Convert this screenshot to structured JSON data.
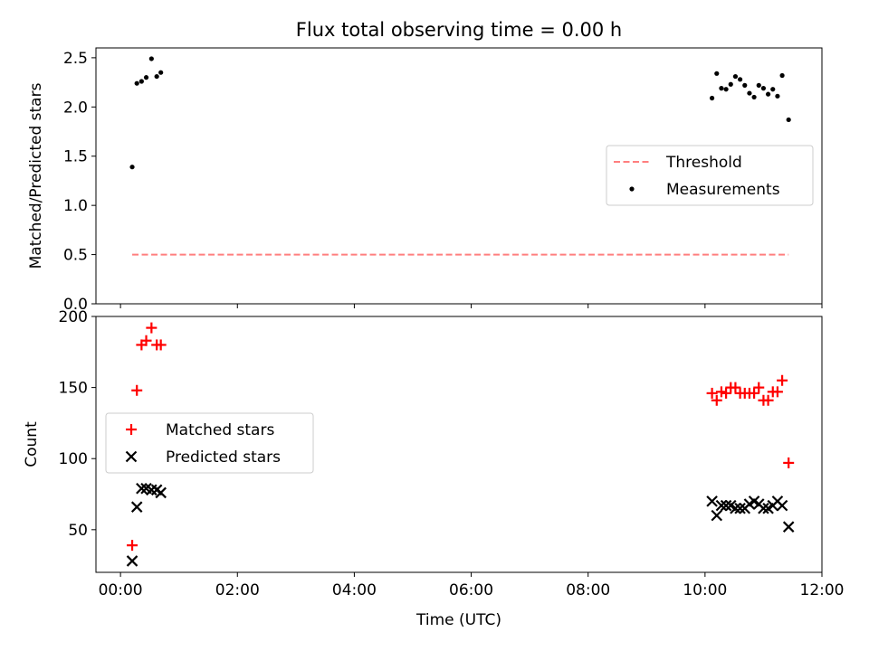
{
  "title": "Flux total observing time = 0.00 h",
  "chart_data": [
    {
      "type": "scatter",
      "panel": "top",
      "xlabel": "",
      "ylabel": "Matched/Predicted stars",
      "x_unit": "hours (UTC)",
      "xlim": [
        -0.42,
        12.0
      ],
      "ylim": [
        0,
        2.6
      ],
      "y_ticks": [
        0.0,
        0.5,
        1.0,
        1.5,
        2.0,
        2.5
      ],
      "y_tick_labels": [
        "0.0",
        "0.5",
        "1.0",
        "1.5",
        "2.0",
        "2.5"
      ],
      "legend": {
        "placement": "center-right",
        "entries": [
          "Threshold",
          "Measurements"
        ]
      },
      "series": [
        {
          "name": "Threshold",
          "style": "dashed-line",
          "color": "#ff7f7f",
          "x": [
            0.2,
            11.43
          ],
          "y": [
            0.5,
            0.5
          ]
        },
        {
          "name": "Measurements",
          "style": "dot",
          "color": "#000000",
          "x": [
            0.2,
            0.28,
            0.36,
            0.44,
            0.53,
            0.62,
            0.69,
            10.12,
            10.2,
            10.28,
            10.36,
            10.44,
            10.52,
            10.6,
            10.68,
            10.76,
            10.84,
            10.92,
            11.0,
            11.08,
            11.16,
            11.24,
            11.32,
            11.43
          ],
          "y": [
            1.39,
            2.24,
            2.26,
            2.3,
            2.49,
            2.31,
            2.35,
            2.09,
            2.34,
            2.19,
            2.18,
            2.23,
            2.31,
            2.28,
            2.22,
            2.14,
            2.1,
            2.22,
            2.19,
            2.13,
            2.18,
            2.11,
            2.32,
            1.87
          ]
        }
      ]
    },
    {
      "type": "scatter",
      "panel": "bottom",
      "xlabel": "Time (UTC)",
      "ylabel": "Count",
      "x_unit": "hours (UTC)",
      "xlim": [
        -0.42,
        12.0
      ],
      "ylim": [
        20,
        200
      ],
      "y_ticks": [
        50,
        100,
        150,
        200
      ],
      "y_tick_labels": [
        "50",
        "100",
        "150",
        "200"
      ],
      "x_ticks": [
        0,
        2,
        4,
        6,
        8,
        10,
        12
      ],
      "x_tick_labels": [
        "00:00",
        "02:00",
        "04:00",
        "06:00",
        "08:00",
        "10:00",
        "12:00"
      ],
      "legend": {
        "placement": "center-left",
        "entries": [
          "Matched stars",
          "Predicted stars"
        ]
      },
      "series": [
        {
          "name": "Matched stars",
          "marker": "plus",
          "color": "#ff0000",
          "x": [
            0.2,
            0.28,
            0.36,
            0.44,
            0.53,
            0.62,
            0.69,
            10.12,
            10.2,
            10.28,
            10.36,
            10.44,
            10.52,
            10.6,
            10.68,
            10.76,
            10.84,
            10.92,
            11.0,
            11.08,
            11.16,
            11.24,
            11.32,
            11.43
          ],
          "y": [
            39,
            148,
            180,
            183,
            192,
            180,
            180,
            146,
            141,
            147,
            146,
            150,
            150,
            146,
            146,
            146,
            146,
            150,
            141,
            141,
            147,
            147,
            155,
            97
          ]
        },
        {
          "name": "Predicted stars",
          "marker": "x",
          "color": "#000000",
          "x": [
            0.2,
            0.28,
            0.36,
            0.44,
            0.53,
            0.62,
            0.69,
            10.12,
            10.2,
            10.28,
            10.36,
            10.44,
            10.52,
            10.6,
            10.68,
            10.76,
            10.84,
            10.92,
            11.0,
            11.08,
            11.16,
            11.24,
            11.32,
            11.43
          ],
          "y": [
            28,
            66,
            79,
            79,
            78,
            78,
            76,
            70,
            60,
            67,
            67,
            67,
            65,
            65,
            65,
            68,
            70,
            68,
            65,
            65,
            67,
            70,
            67,
            52
          ]
        }
      ]
    }
  ]
}
